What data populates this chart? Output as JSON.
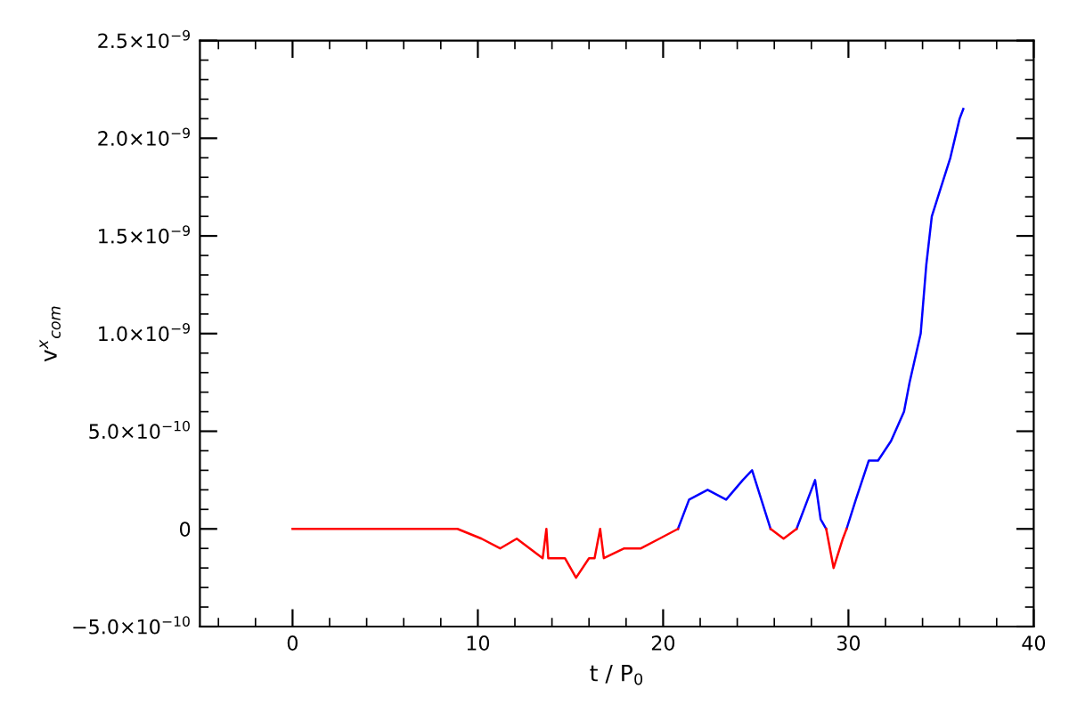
{
  "chart_data": {
    "type": "line",
    "xlabel": "t / P$_{0}$",
    "ylabel": "v$^{x}$$_{com}$",
    "xlim": [
      -5,
      40
    ],
    "xticks": [
      0,
      10,
      20,
      30,
      40
    ],
    "ylim": [
      -5e-10,
      2.5e-09
    ],
    "yticks": [
      {
        "value": -5e-10,
        "label": "−5.0×10$^{−10}$"
      },
      {
        "value": 0,
        "label": "0"
      },
      {
        "value": 5e-10,
        "label": "5.0×10$^{−10}$"
      },
      {
        "value": 1e-09,
        "label": "1.0×10$^{−9}$"
      },
      {
        "value": 1.5e-09,
        "label": "1.5×10$^{−9}$"
      },
      {
        "value": 2e-09,
        "label": "2.0×10$^{−9}$"
      },
      {
        "value": 2.5e-09,
        "label": "2.5×10$^{−9}$"
      }
    ],
    "grid": false,
    "marker": "none",
    "line_style": "solid",
    "series": [
      {
        "color": "#0000ff",
        "x": [
          20.8,
          21.4,
          22.4,
          23.4,
          24.3,
          24.8,
          25.3,
          25.8,
          26.5,
          27.2,
          27.8,
          28.2,
          28.5,
          28.8,
          29.2,
          29.9,
          30.4,
          31.1,
          31.6,
          32.3,
          33.0,
          33.3,
          33.9,
          34.2,
          34.5,
          35.0,
          35.5,
          36.0,
          36.2
        ],
        "values": [
          0,
          1.5e-10,
          2e-10,
          1.5e-10,
          2.5e-10,
          3e-10,
          1.5e-10,
          0,
          null,
          0,
          1.5e-10,
          2.5e-10,
          5e-11,
          0,
          null,
          0,
          1.5e-10,
          3.5e-10,
          3.5e-10,
          4.5e-10,
          6e-10,
          7.5e-10,
          1e-09,
          1.35e-09,
          1.6e-09,
          1.75e-09,
          1.9e-09,
          2.1e-09,
          2.15e-09
        ]
      },
      {
        "color": "#ff0000",
        "x": [
          0,
          4,
          8,
          8.9,
          10.2,
          11.2,
          12.1,
          12.8,
          13.5,
          13.7,
          13.8,
          14.7,
          15.3,
          16.0,
          16.3,
          16.6,
          16.8,
          17.9,
          18.8,
          19.8,
          20.8,
          23,
          25.8,
          26.5,
          27.2,
          28,
          28.8,
          29.2,
          29.7,
          29.9
        ],
        "values": [
          0,
          0,
          0,
          0,
          -5e-11,
          -1e-10,
          -5e-11,
          -1e-10,
          -1.5e-10,
          0,
          -1.5e-10,
          -1.5e-10,
          -2.5e-10,
          -1.5e-10,
          -1.5e-10,
          0,
          -1.5e-10,
          -1e-10,
          -1e-10,
          -5e-11,
          0,
          null,
          0,
          -5e-11,
          0,
          null,
          0,
          -2e-10,
          -5e-11,
          0
        ]
      }
    ]
  }
}
